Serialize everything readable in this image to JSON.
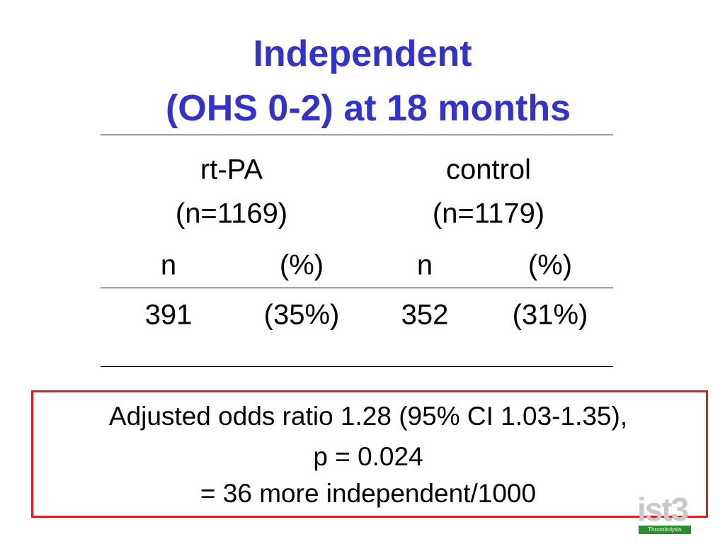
{
  "title": {
    "line1": "Independent",
    "line2": "(OHS 0-2) at 18 months"
  },
  "table": {
    "groups": [
      {
        "name": "rt-PA",
        "n": "(n=1169)"
      },
      {
        "name": "control",
        "n": "(n=1179)"
      }
    ],
    "subheaders": [
      "n",
      "(%)",
      "n",
      "(%)"
    ],
    "rows": [
      [
        "391",
        "(35%)",
        "352",
        "(31%)"
      ]
    ]
  },
  "summary": {
    "lines": [
      "Adjusted odds ratio 1.28 (95% CI 1.03-1.35),",
      "p = 0.024",
      "= 36 more independent/1000"
    ]
  },
  "logo": {
    "text": "ist3",
    "caption": "Thrombolysis"
  }
}
